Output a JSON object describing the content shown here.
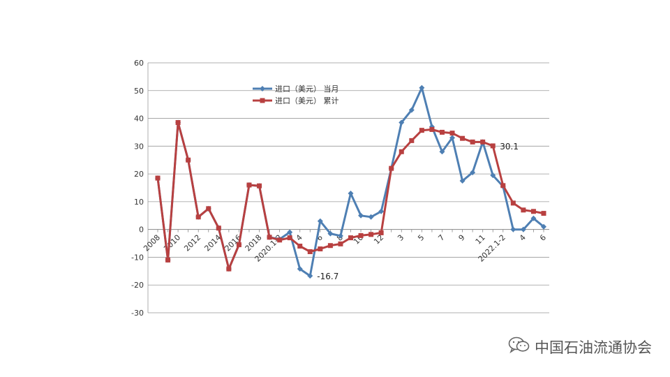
{
  "chart_data": {
    "type": "line",
    "x": [
      "2008",
      "2009",
      "2010",
      "2011",
      "2012",
      "2013",
      "2014",
      "2015",
      "2016",
      "2017",
      "2018",
      "2019",
      "2020.1-2",
      "3",
      "4",
      "5",
      "6",
      "7",
      "8",
      "9",
      "10",
      "11",
      "12",
      "2021.1-2",
      "3",
      "4",
      "5",
      "6",
      "7",
      "8",
      "9",
      "10",
      "11",
      "12",
      "2022.1-2",
      "3",
      "4",
      "5",
      "6"
    ],
    "x_tick_labels": [
      {
        "index": 0,
        "label": "2008"
      },
      {
        "index": 2,
        "label": "2010"
      },
      {
        "index": 4,
        "label": "2012"
      },
      {
        "index": 6,
        "label": "2014"
      },
      {
        "index": 8,
        "label": "2016"
      },
      {
        "index": 10,
        "label": "2018"
      },
      {
        "index": 12,
        "label": "2020.1-2"
      },
      {
        "index": 14,
        "label": "4"
      },
      {
        "index": 16,
        "label": "6"
      },
      {
        "index": 18,
        "label": "8"
      },
      {
        "index": 20,
        "label": "10"
      },
      {
        "index": 22,
        "label": "12"
      },
      {
        "index": 24,
        "label": "3"
      },
      {
        "index": 26,
        "label": "5"
      },
      {
        "index": 28,
        "label": "7"
      },
      {
        "index": 30,
        "label": "9"
      },
      {
        "index": 32,
        "label": "11"
      },
      {
        "index": 34,
        "label": "2022.1-2"
      },
      {
        "index": 36,
        "label": "4"
      },
      {
        "index": 38,
        "label": "6"
      }
    ],
    "y_ticks": [
      "60",
      "50",
      "40",
      "30",
      "20",
      "10",
      "0",
      "-10",
      "-20",
      "-30"
    ],
    "ylim": [
      -30,
      60
    ],
    "grid": true,
    "legend_position": "top-left",
    "series": [
      {
        "name": "进口（美元） 当月",
        "color": "#4e7fb3",
        "marker": "diamond",
        "values": [
          18.5,
          -11,
          38.5,
          25,
          4.5,
          7.5,
          0.5,
          -14.2,
          -5.5,
          16,
          15.7,
          -2.8,
          -3.5,
          -1,
          -14.2,
          -16.7,
          3,
          -1.5,
          -2.3,
          13,
          5,
          4.5,
          6.5,
          22,
          38.5,
          43,
          51,
          37,
          28,
          33,
          17.5,
          20.5,
          31.5,
          19.5,
          15.5,
          0,
          0,
          4,
          1
        ]
      },
      {
        "name": "进口（美元） 累计",
        "color": "#b84040",
        "marker": "square",
        "values": [
          18.5,
          -11,
          38.5,
          25,
          4.5,
          7.5,
          0.5,
          -14.2,
          -5.5,
          16,
          15.7,
          -2.8,
          -3.8,
          -3,
          -6,
          -8,
          -7,
          -5.8,
          -5.2,
          -3,
          -2.2,
          -1.8,
          -1.2,
          22,
          28,
          32,
          35.7,
          36,
          35,
          34.7,
          32.8,
          31.5,
          31.5,
          30.1,
          15.8,
          9.5,
          7,
          6.5,
          5.8
        ]
      }
    ],
    "annotations": [
      {
        "text": "30.1",
        "series_index": 1,
        "point_index": 33
      },
      {
        "text": "-16.7",
        "series_index": 0,
        "point_index": 15
      }
    ]
  },
  "watermark": {
    "text": "中国石油流通协会",
    "icon": "wechat-icon"
  }
}
